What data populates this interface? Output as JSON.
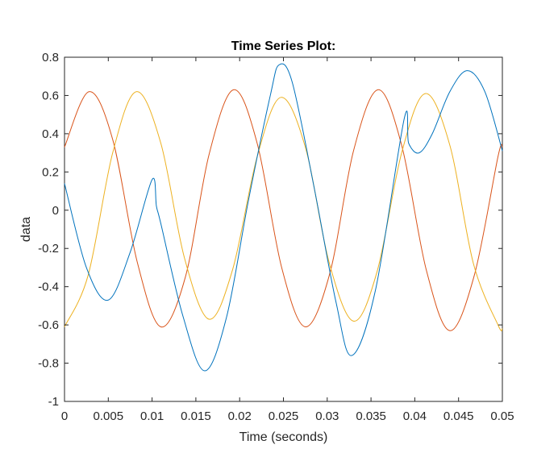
{
  "chart_data": {
    "type": "line",
    "title": "Time Series Plot:",
    "xlabel": "Time (seconds)",
    "ylabel": "data",
    "xlim": [
      0,
      0.05
    ],
    "ylim": [
      -1,
      0.8
    ],
    "xticks": [
      0,
      0.005,
      0.01,
      0.015,
      0.02,
      0.025,
      0.03,
      0.035,
      0.04,
      0.045,
      0.05
    ],
    "xtick_labels": [
      "0",
      "0.005",
      "0.01",
      "0.015",
      "0.02",
      "0.025",
      "0.03",
      "0.035",
      "0.04",
      "0.045",
      "0.05"
    ],
    "yticks": [
      -1,
      -0.8,
      -0.6,
      -0.4,
      -0.2,
      0,
      0.2,
      0.4,
      0.6,
      0.8
    ],
    "ytick_labels": [
      "-1",
      "-0.8",
      "-0.6",
      "-0.4",
      "-0.2",
      "0",
      "0.2",
      "0.4",
      "0.6",
      "0.8"
    ],
    "grid": false,
    "series": [
      {
        "color": "#0072BD",
        "x": [
          0,
          0.0025,
          0.005,
          0.0075,
          0.01,
          0.0105,
          0.011,
          0.0135,
          0.016,
          0.0185,
          0.021,
          0.0235,
          0.0245,
          0.026,
          0.0285,
          0.031,
          0.0328,
          0.0355,
          0.0388,
          0.0393,
          0.0405,
          0.042,
          0.044,
          0.046,
          0.048,
          0.05
        ],
        "y": [
          0.14,
          -0.3,
          -0.47,
          -0.22,
          0.16,
          0.02,
          -0.07,
          -0.55,
          -0.84,
          -0.56,
          0.05,
          0.6,
          0.76,
          0.67,
          0.12,
          -0.48,
          -0.76,
          -0.42,
          0.48,
          0.35,
          0.3,
          0.4,
          0.62,
          0.73,
          0.62,
          0.31
        ]
      },
      {
        "color": "#D95319",
        "x": [
          0,
          0.0028,
          0.0055,
          0.0083,
          0.011,
          0.0138,
          0.0165,
          0.0193,
          0.022,
          0.0248,
          0.0275,
          0.0303,
          0.033,
          0.0358,
          0.0385,
          0.0413,
          0.044,
          0.0468,
          0.0495,
          0.05
        ],
        "y": [
          0.33,
          0.62,
          0.37,
          -0.27,
          -0.61,
          -0.35,
          0.29,
          0.63,
          0.35,
          -0.3,
          -0.61,
          -0.33,
          0.31,
          0.63,
          0.34,
          -0.31,
          -0.63,
          -0.34,
          0.28,
          0.33
        ]
      },
      {
        "color": "#EDB120",
        "x": [
          0,
          0.0027,
          0.0055,
          0.0082,
          0.011,
          0.0137,
          0.0165,
          0.0192,
          0.022,
          0.0247,
          0.0275,
          0.0302,
          0.033,
          0.0357,
          0.0385,
          0.0412,
          0.044,
          0.0467,
          0.0495,
          0.05
        ],
        "y": [
          -0.61,
          -0.34,
          0.3,
          0.62,
          0.35,
          -0.25,
          -0.57,
          -0.31,
          0.28,
          0.59,
          0.33,
          -0.27,
          -0.58,
          -0.32,
          0.3,
          0.61,
          0.34,
          -0.28,
          -0.6,
          -0.62
        ]
      }
    ]
  }
}
